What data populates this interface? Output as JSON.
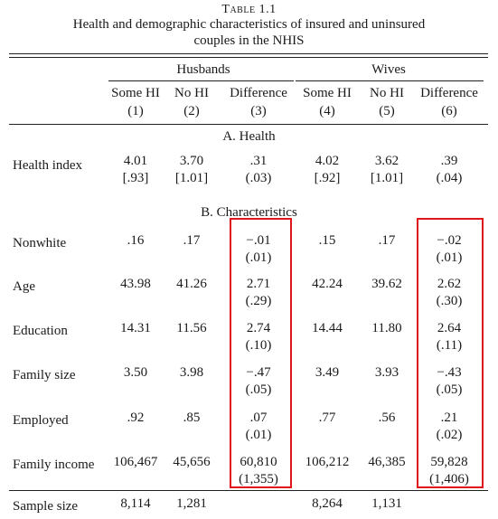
{
  "table": {
    "title": "Table 1.1",
    "caption_line1": "Health and demographic characteristics of insured and uninsured",
    "caption_line2": "couples in the NHIS",
    "group_headers": [
      "Husbands",
      "Wives"
    ],
    "columns": [
      {
        "label": "Some HI",
        "num": "(1)"
      },
      {
        "label": "No HI",
        "num": "(2)"
      },
      {
        "label": "Difference",
        "num": "(3)"
      },
      {
        "label": "Some HI",
        "num": "(4)"
      },
      {
        "label": "No HI",
        "num": "(5)"
      },
      {
        "label": "Difference",
        "num": "(6)"
      }
    ],
    "section_a": "A. Health",
    "section_b": "B. Characteristics",
    "health_row": {
      "label": "Health index",
      "values": [
        "4.01",
        "3.70",
        ".31",
        "4.02",
        "3.62",
        ".39"
      ],
      "se": [
        "[.93]",
        "[1.01]",
        "(.03)",
        "[.92]",
        "[1.01]",
        "(.04)"
      ]
    },
    "rows": [
      {
        "label": "Nonwhite",
        "values": [
          ".16",
          ".17",
          "−.01",
          ".15",
          ".17",
          "−.02"
        ],
        "se": [
          "",
          "",
          "(.01)",
          "",
          "",
          "(.01)"
        ]
      },
      {
        "label": "Age",
        "values": [
          "43.98",
          "41.26",
          "2.71",
          "42.24",
          "39.62",
          "2.62"
        ],
        "se": [
          "",
          "",
          "(.29)",
          "",
          "",
          "(.30)"
        ]
      },
      {
        "label": "Education",
        "values": [
          "14.31",
          "11.56",
          "2.74",
          "14.44",
          "11.80",
          "2.64"
        ],
        "se": [
          "",
          "",
          "(.10)",
          "",
          "",
          "(.11)"
        ]
      },
      {
        "label": "Family size",
        "values": [
          "3.50",
          "3.98",
          "−.47",
          "3.49",
          "3.93",
          "−.43"
        ],
        "se": [
          "",
          "",
          "(.05)",
          "",
          "",
          "(.05)"
        ]
      },
      {
        "label": "Employed",
        "values": [
          ".92",
          ".85",
          ".07",
          ".77",
          ".56",
          ".21"
        ],
        "se": [
          "",
          "",
          "(.01)",
          "",
          "",
          "(.02)"
        ]
      },
      {
        "label": "Family income",
        "values": [
          "106,467",
          "45,656",
          "60,810",
          "106,212",
          "46,385",
          "59,828"
        ],
        "se": [
          "",
          "",
          "(1,355)",
          "",
          "",
          "(1,406)"
        ]
      }
    ],
    "sample_row": {
      "label": "Sample size",
      "values": [
        "8,114",
        "1,281",
        "",
        "8,264",
        "1,131",
        ""
      ]
    },
    "highlight_color": "#e0151b"
  }
}
